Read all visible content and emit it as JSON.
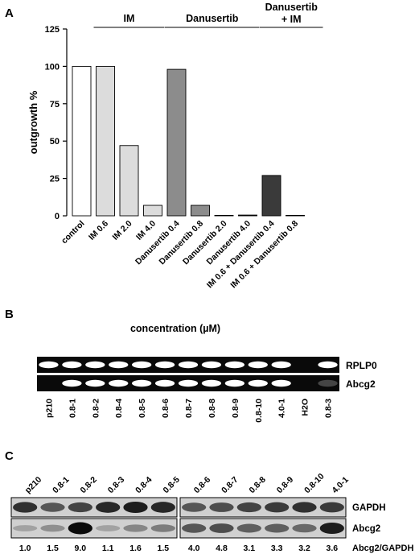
{
  "panels": {
    "a": {
      "letter": "A",
      "chart_data": {
        "type": "bar",
        "ylabel": "outgrowth %",
        "yticks": [
          0,
          25,
          50,
          75,
          100,
          125
        ],
        "ylim": [
          0,
          125
        ],
        "grid": false,
        "categories": [
          "control",
          "IM 0.6",
          "IM 2.0",
          "IM 4.0",
          "Danusertib 0.4",
          "Danusertib 0.8",
          "Danusertib 2.0",
          "Danusertib 4.0",
          "IM 0.6 + Danusertib 0.4",
          "IM 0.6 + Danusertib 0.8"
        ],
        "values": [
          100,
          100,
          47,
          7,
          98,
          7,
          0,
          0.5,
          27,
          0
        ],
        "bar_colors": [
          "#ffffff",
          "#dcdcdc",
          "#dcdcdc",
          "#dcdcdc",
          "#8c8c8c",
          "#8c8c8c",
          "#8c8c8c",
          "#8c8c8c",
          "#3a3a3a",
          "#3a3a3a"
        ],
        "groups": [
          {
            "label": "IM",
            "first": 1,
            "last": 3
          },
          {
            "label": "Danusertib",
            "first": 4,
            "last": 7
          },
          {
            "label": "Danusertib\n+ IM",
            "first": 8,
            "last": 9
          }
        ]
      }
    },
    "b": {
      "letter": "B",
      "title": "concentration (µM)",
      "lanes": [
        "p210",
        "0.8-1",
        "0.8-2",
        "0.8-4",
        "0.8-5",
        "0.8-6",
        "0.8-7",
        "0.8-8",
        "0.8-9",
        "0.8-10",
        "4.0-1",
        "H2O",
        "0.8-3"
      ],
      "bands": [
        {
          "label": "RPLP0",
          "intensity": [
            1,
            1,
            1,
            1,
            1,
            1,
            1,
            1,
            1,
            1,
            1,
            0,
            1
          ]
        },
        {
          "label": "Abcg2",
          "intensity": [
            0,
            1,
            1,
            1,
            1,
            1,
            1,
            1,
            1,
            1,
            1,
            0,
            0.3
          ]
        }
      ]
    },
    "c": {
      "letter": "C",
      "lanes_left": [
        "p210",
        "0.8-1",
        "0.8-2",
        "0.8-3",
        "0.8-4",
        "0.8-5"
      ],
      "lanes_right": [
        "0.8-6",
        "0.8-7",
        "0.8-8",
        "0.8-9",
        "0.8-10",
        "4.0-1"
      ],
      "rows": [
        {
          "label": "GAPDH",
          "intensity": [
            0.8,
            0.6,
            0.7,
            0.85,
            0.9,
            0.85,
            0.6,
            0.65,
            0.7,
            0.75,
            0.8,
            0.75
          ]
        },
        {
          "label": "Abcg2",
          "intensity": [
            0.2,
            0.3,
            1.0,
            0.2,
            0.35,
            0.4,
            0.6,
            0.65,
            0.55,
            0.55,
            0.5,
            0.9
          ]
        }
      ],
      "ratios": [
        "1.0",
        "1.5",
        "9.0",
        "1.1",
        "1.6",
        "1.5",
        "4.0",
        "4.8",
        "3.1",
        "3.3",
        "3.2",
        "3.6"
      ],
      "ratio_label": "Abcg2/GAPDH"
    }
  }
}
